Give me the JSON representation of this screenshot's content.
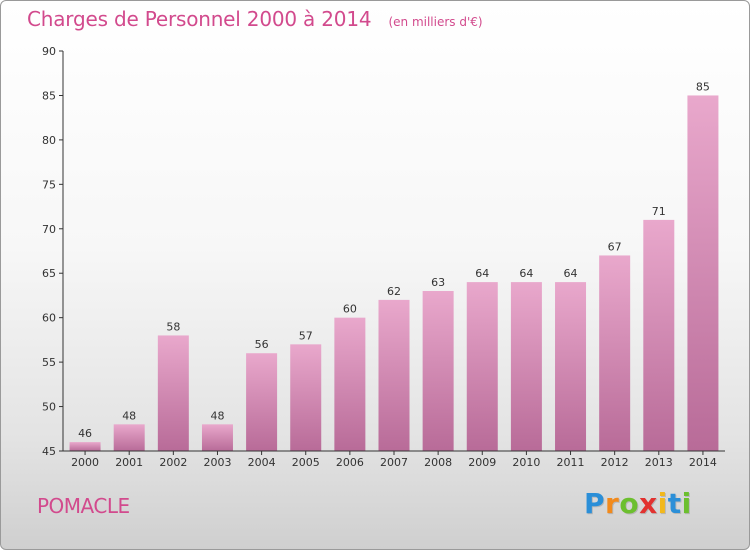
{
  "header": {
    "title": "Charges de Personnel 2000 à 2014",
    "subtitle": "(en milliers d'€)"
  },
  "footer": {
    "commune": "POMACLE",
    "logo_letters": [
      "P",
      "r",
      "o",
      "x",
      "i",
      "t",
      "i"
    ],
    "logo_colors": [
      "#2b8fd8",
      "#f28a1c",
      "#6cbf2e",
      "#e2312f",
      "#f2b81c",
      "#2b8fd8",
      "#6cbf2e"
    ]
  },
  "chart_data": {
    "type": "bar",
    "title": "Charges de Personnel 2000 à 2014",
    "subtitle": "(en milliers d'€)",
    "categories": [
      "2000",
      "2001",
      "2002",
      "2003",
      "2004",
      "2005",
      "2006",
      "2007",
      "2008",
      "2009",
      "2010",
      "2011",
      "2012",
      "2013",
      "2014"
    ],
    "values": [
      46,
      48,
      58,
      48,
      56,
      57,
      60,
      62,
      63,
      64,
      64,
      64,
      67,
      71,
      85
    ],
    "ylim": [
      45,
      90
    ],
    "yticks": [
      45,
      50,
      55,
      60,
      65,
      70,
      75,
      80,
      85,
      90
    ],
    "grid": false,
    "bar_color_top": "#e9a8cc",
    "bar_color_bottom": "#b86b98",
    "axis_color": "#333333"
  }
}
